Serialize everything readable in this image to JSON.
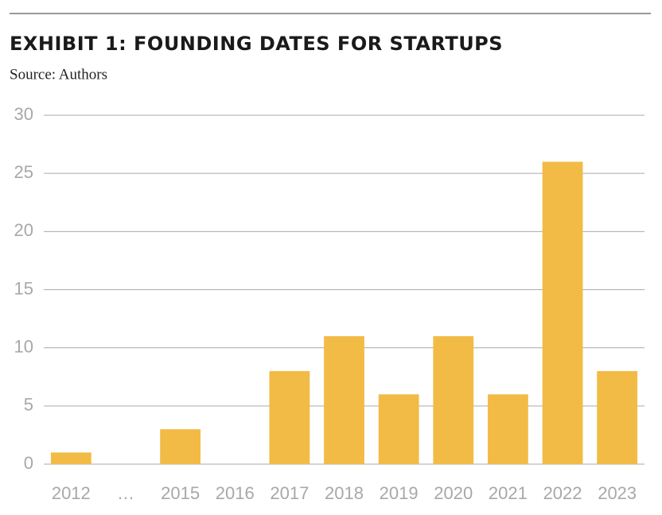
{
  "chart_data": {
    "type": "bar",
    "title": "EXHIBIT 1: FOUNDING DATES FOR STARTUPS",
    "subtitle": "Source: Authors",
    "categories": [
      "2012",
      "…",
      "2015",
      "2016",
      "2017",
      "2018",
      "2019",
      "2020",
      "2021",
      "2022",
      "2023"
    ],
    "values": [
      1,
      null,
      3,
      null,
      8,
      11,
      6,
      11,
      6,
      26,
      8
    ],
    "color": "#f2bb45",
    "ylim": [
      0,
      30
    ],
    "yticks": [
      0,
      5,
      10,
      15,
      20,
      25,
      30
    ],
    "grid": true
  }
}
